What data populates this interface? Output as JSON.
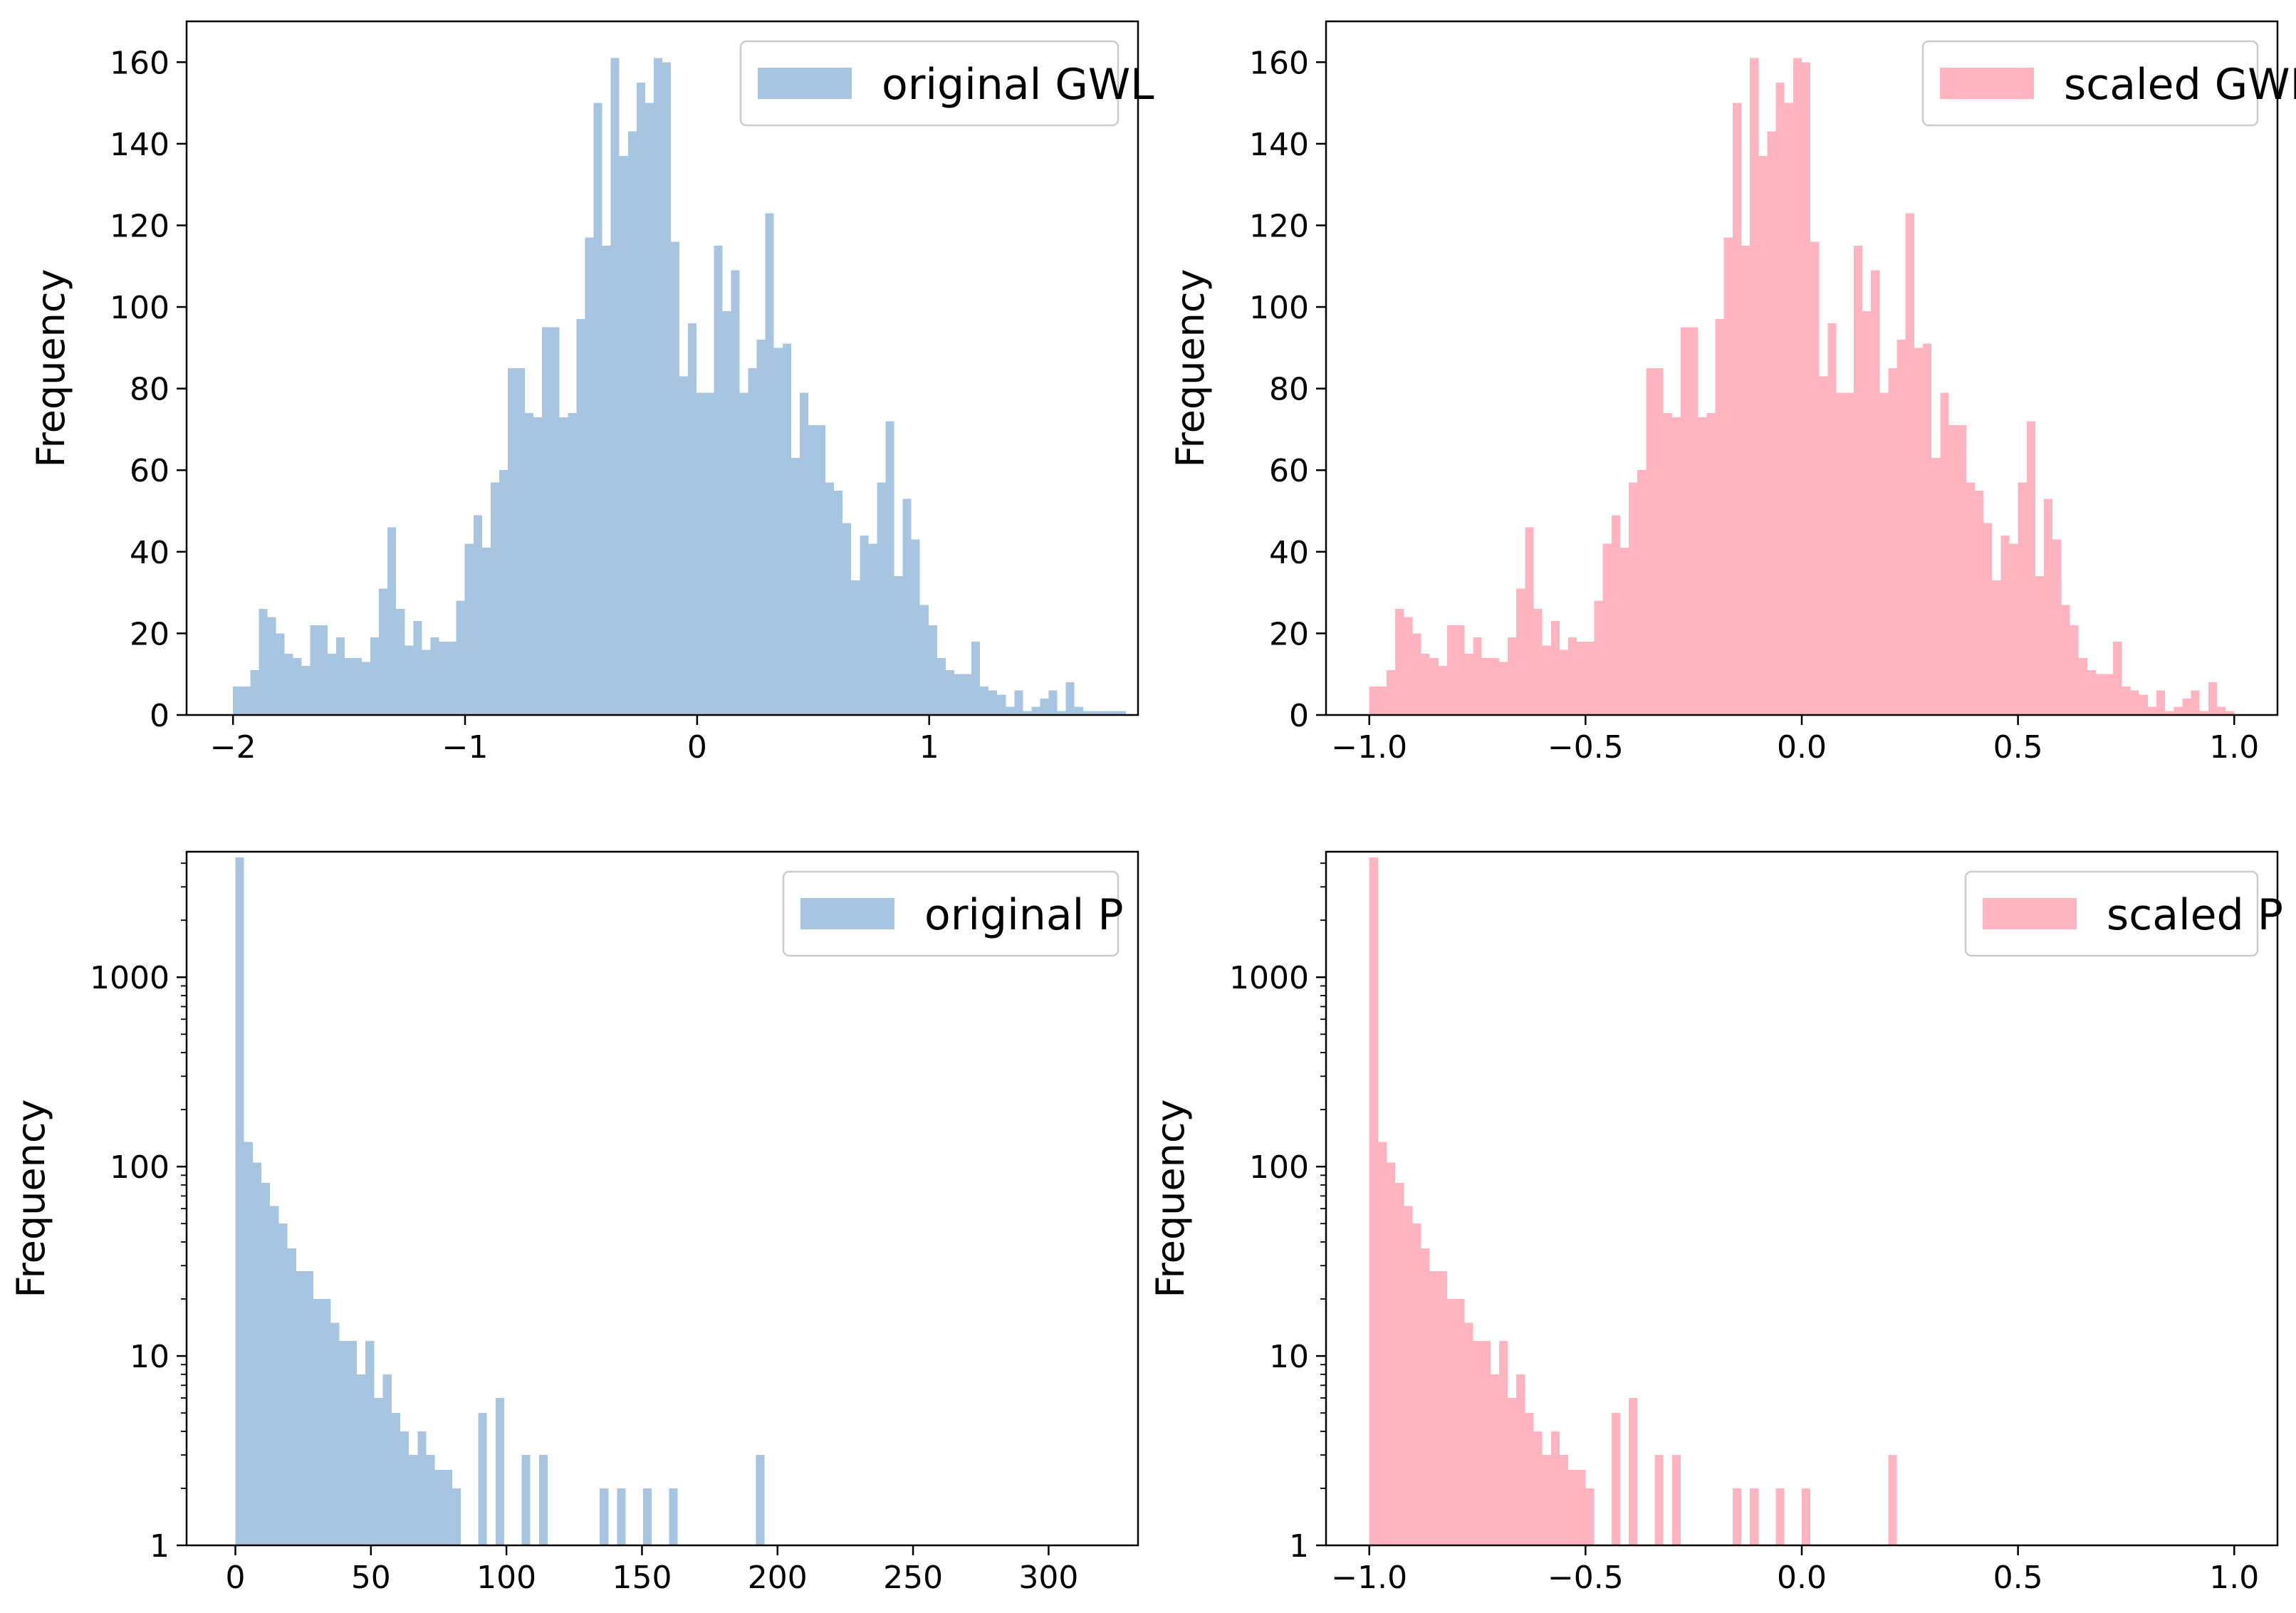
{
  "colors": {
    "gwl_original": "#a7c4e0",
    "gwl_scaled": "#ffb4c0",
    "axis": "#000000",
    "legend_edge": "#cccccc"
  },
  "chart_data": [
    {
      "id": "original-gwl",
      "type": "bar",
      "title": "",
      "legend": "original GWL",
      "legend_position": "upper-right",
      "color": "#a7c4e0",
      "xlabel": "",
      "ylabel": "Frequency",
      "xscale": "linear",
      "yscale": "linear",
      "xlim": [
        -2.2,
        1.9
      ],
      "ylim": [
        0,
        170
      ],
      "xticks": [
        -2,
        -1,
        0,
        1
      ],
      "xtick_labels": [
        "−2",
        "−1",
        "0",
        "1"
      ],
      "yticks": [
        0,
        20,
        40,
        60,
        80,
        100,
        120,
        140,
        160
      ],
      "ytick_labels": [
        "0",
        "20",
        "40",
        "60",
        "80",
        "100",
        "120",
        "140",
        "160"
      ],
      "bin_start": -2.0,
      "bin_width": 0.037,
      "values": [
        7,
        7,
        11,
        26,
        24,
        20,
        15,
        14,
        12,
        22,
        22,
        15,
        19,
        14,
        14,
        13,
        19,
        31,
        46,
        26,
        17,
        23,
        16,
        19,
        18,
        18,
        28,
        42,
        49,
        41,
        57,
        60,
        85,
        85,
        74,
        73,
        95,
        95,
        73,
        74,
        97,
        117,
        150,
        115,
        161,
        137,
        143,
        155,
        150,
        161,
        160,
        116,
        83,
        96,
        79,
        79,
        115,
        99,
        109,
        79,
        85,
        92,
        123,
        90,
        91,
        63,
        79,
        71,
        71,
        57,
        55,
        47,
        33,
        44,
        42,
        57,
        72,
        34,
        53,
        43,
        27,
        22,
        14,
        11,
        10,
        10,
        18,
        7,
        6,
        5,
        2,
        6,
        1,
        2,
        4,
        6,
        1,
        8,
        2,
        1,
        1,
        1,
        1,
        1
      ]
    },
    {
      "id": "scaled-gwl",
      "type": "bar",
      "title": "",
      "legend": "scaled GWL",
      "legend_position": "upper-right",
      "color": "#ffb4c0",
      "xlabel": "",
      "ylabel": "Frequency",
      "xscale": "linear",
      "yscale": "linear",
      "xlim": [
        -1.1,
        1.1
      ],
      "ylim": [
        0,
        170
      ],
      "xticks": [
        -1.0,
        -0.5,
        0.0,
        0.5,
        1.0
      ],
      "xtick_labels": [
        "−1.0",
        "−0.5",
        "0.0",
        "0.5",
        "1.0"
      ],
      "yticks": [
        0,
        20,
        40,
        60,
        80,
        100,
        120,
        140,
        160
      ],
      "ytick_labels": [
        "0",
        "20",
        "40",
        "60",
        "80",
        "100",
        "120",
        "140",
        "160"
      ],
      "bin_start": -1.0,
      "bin_width": 0.02,
      "values": [
        7,
        7,
        11,
        26,
        24,
        20,
        15,
        14,
        12,
        22,
        22,
        15,
        19,
        14,
        14,
        13,
        19,
        31,
        46,
        26,
        17,
        23,
        16,
        19,
        18,
        18,
        28,
        42,
        49,
        41,
        57,
        60,
        85,
        85,
        74,
        73,
        95,
        95,
        73,
        74,
        97,
        117,
        150,
        115,
        161,
        137,
        143,
        155,
        150,
        161,
        160,
        116,
        83,
        96,
        79,
        79,
        115,
        99,
        109,
        79,
        85,
        92,
        123,
        90,
        91,
        63,
        79,
        71,
        71,
        57,
        55,
        47,
        33,
        44,
        42,
        57,
        72,
        34,
        53,
        43,
        27,
        22,
        14,
        11,
        10,
        10,
        18,
        7,
        6,
        5,
        2,
        6,
        1,
        2,
        4,
        6,
        1,
        8,
        2,
        1
      ]
    },
    {
      "id": "original-p",
      "type": "bar",
      "title": "",
      "legend": "original P",
      "legend_position": "upper-right",
      "color": "#a7c4e0",
      "xlabel": "",
      "ylabel": "Frequency",
      "xscale": "linear",
      "yscale": "log",
      "xlim": [
        -18,
        333
      ],
      "ylim": [
        1,
        4600
      ],
      "xticks": [
        0,
        50,
        100,
        150,
        200,
        250,
        300
      ],
      "xtick_labels": [
        "0",
        "50",
        "100",
        "150",
        "200",
        "250",
        "300"
      ],
      "yticks": [
        1,
        10,
        100,
        1000
      ],
      "ytick_labels": [
        "1",
        "10",
        "100",
        "1000"
      ],
      "bin_start": 0,
      "bin_width": 3.2,
      "values": [
        4300,
        135,
        105,
        82,
        62,
        50,
        37,
        28,
        28,
        20,
        20,
        15,
        12,
        12,
        8,
        12,
        6,
        8,
        5,
        4,
        3,
        4,
        3,
        2.5,
        2.5,
        2,
        0,
        0,
        5,
        0,
        6,
        0,
        0,
        3,
        0,
        3,
        0,
        0,
        0,
        0,
        0,
        0,
        2,
        0,
        2,
        0,
        0,
        2,
        0,
        0,
        2,
        0,
        0,
        0,
        0,
        0,
        0,
        0,
        0,
        0,
        3
      ]
    },
    {
      "id": "scaled-p",
      "type": "bar",
      "title": "",
      "legend": "scaled P",
      "legend_position": "upper-right",
      "color": "#ffb4c0",
      "xlabel": "",
      "ylabel": "Frequency",
      "xscale": "linear",
      "yscale": "log",
      "xlim": [
        -1.1,
        1.1
      ],
      "ylim": [
        1,
        4600
      ],
      "xticks": [
        -1.0,
        -0.5,
        0.0,
        0.5,
        1.0
      ],
      "xtick_labels": [
        "−1.0",
        "−0.5",
        "0.0",
        "0.5",
        "1.0"
      ],
      "yticks": [
        1,
        10,
        100,
        1000
      ],
      "ytick_labels": [
        "1",
        "10",
        "100",
        "1000"
      ],
      "bin_start": -1.0,
      "bin_width": 0.02,
      "values": [
        4300,
        135,
        105,
        82,
        62,
        50,
        37,
        28,
        28,
        20,
        20,
        15,
        12,
        12,
        8,
        12,
        6,
        8,
        5,
        4,
        3,
        4,
        3,
        2.5,
        2.5,
        2,
        0,
        0,
        5,
        0,
        6,
        0,
        0,
        3,
        0,
        3,
        0,
        0,
        0,
        0,
        0,
        0,
        2,
        0,
        2,
        0,
        0,
        2,
        0,
        0,
        2,
        0,
        0,
        0,
        0,
        0,
        0,
        0,
        0,
        0,
        3
      ]
    }
  ]
}
